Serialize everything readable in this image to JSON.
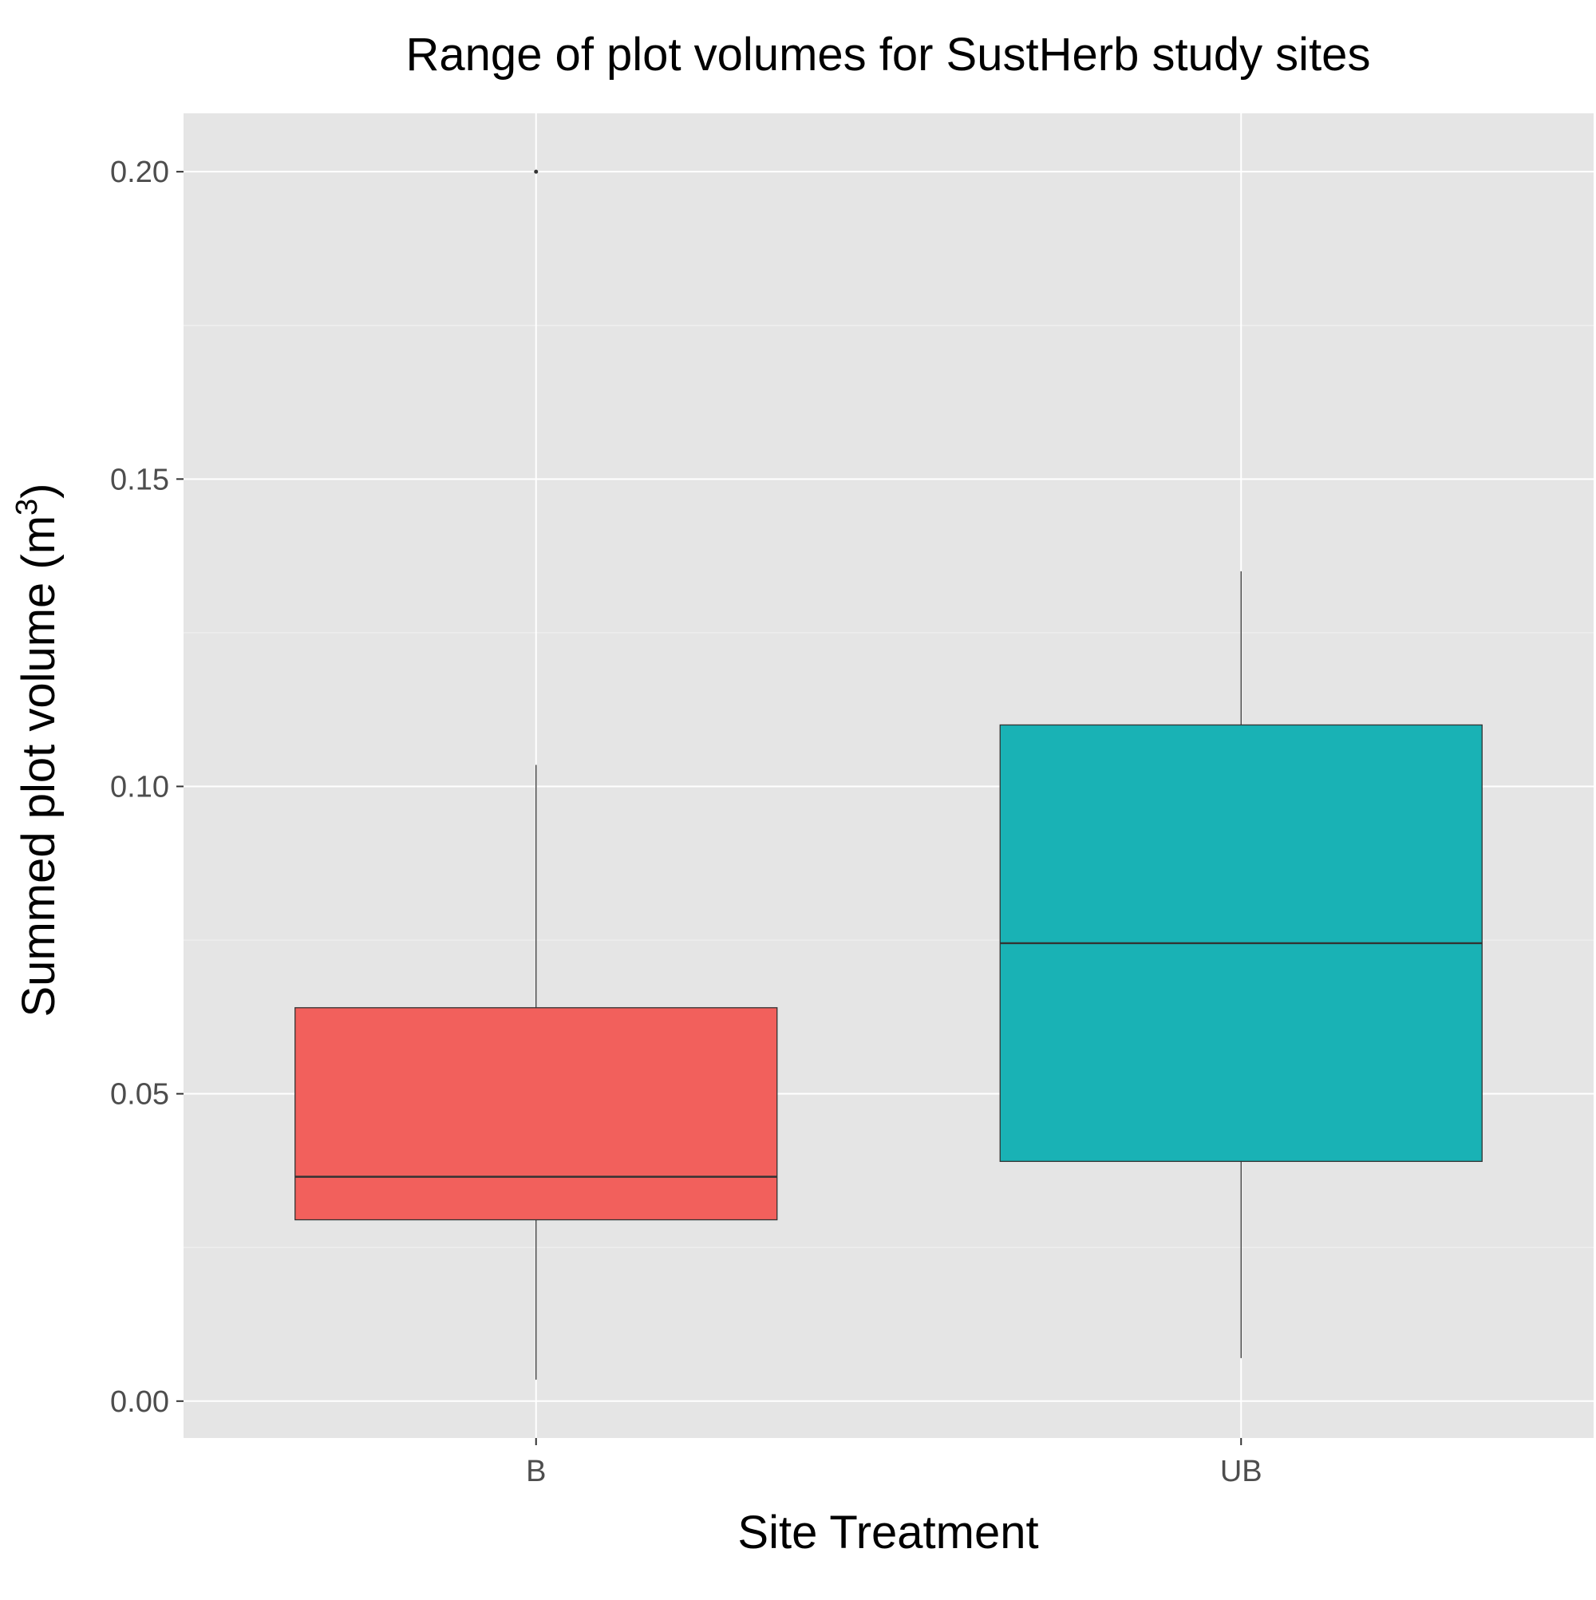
{
  "chart_data": {
    "type": "boxplot",
    "title": "Range of plot volumes for SustHerb study sites",
    "xlabel": "Site Treatment",
    "ylabel": {
      "text": "Summed plot volume (m",
      "superscript": "3",
      "suffix": ")"
    },
    "categories": [
      "B",
      "UB"
    ],
    "boxes": [
      {
        "category": "B",
        "whisker_low": 0.0035,
        "q1": 0.0295,
        "median": 0.0365,
        "q3": 0.064,
        "whisker_high": 0.1035,
        "outliers": [
          0.2
        ],
        "color": "#F2605C"
      },
      {
        "category": "UB",
        "whisker_low": 0.007,
        "q1": 0.039,
        "median": 0.0745,
        "q3": 0.11,
        "whisker_high": 0.135,
        "outliers": [],
        "color": "#19B2B5"
      }
    ],
    "yticks": [
      "0.00",
      "0.05",
      "0.10",
      "0.15",
      "0.20"
    ],
    "ylim": [
      -0.006,
      0.2095
    ],
    "grid": true,
    "legend": "none",
    "colors": {
      "panel_background": "#E5E5E5",
      "grid_major": "#FFFFFF",
      "grid_minor": "#F0F0F0",
      "box_outline": "#333333",
      "tick_text": "#4D4D4D"
    }
  }
}
